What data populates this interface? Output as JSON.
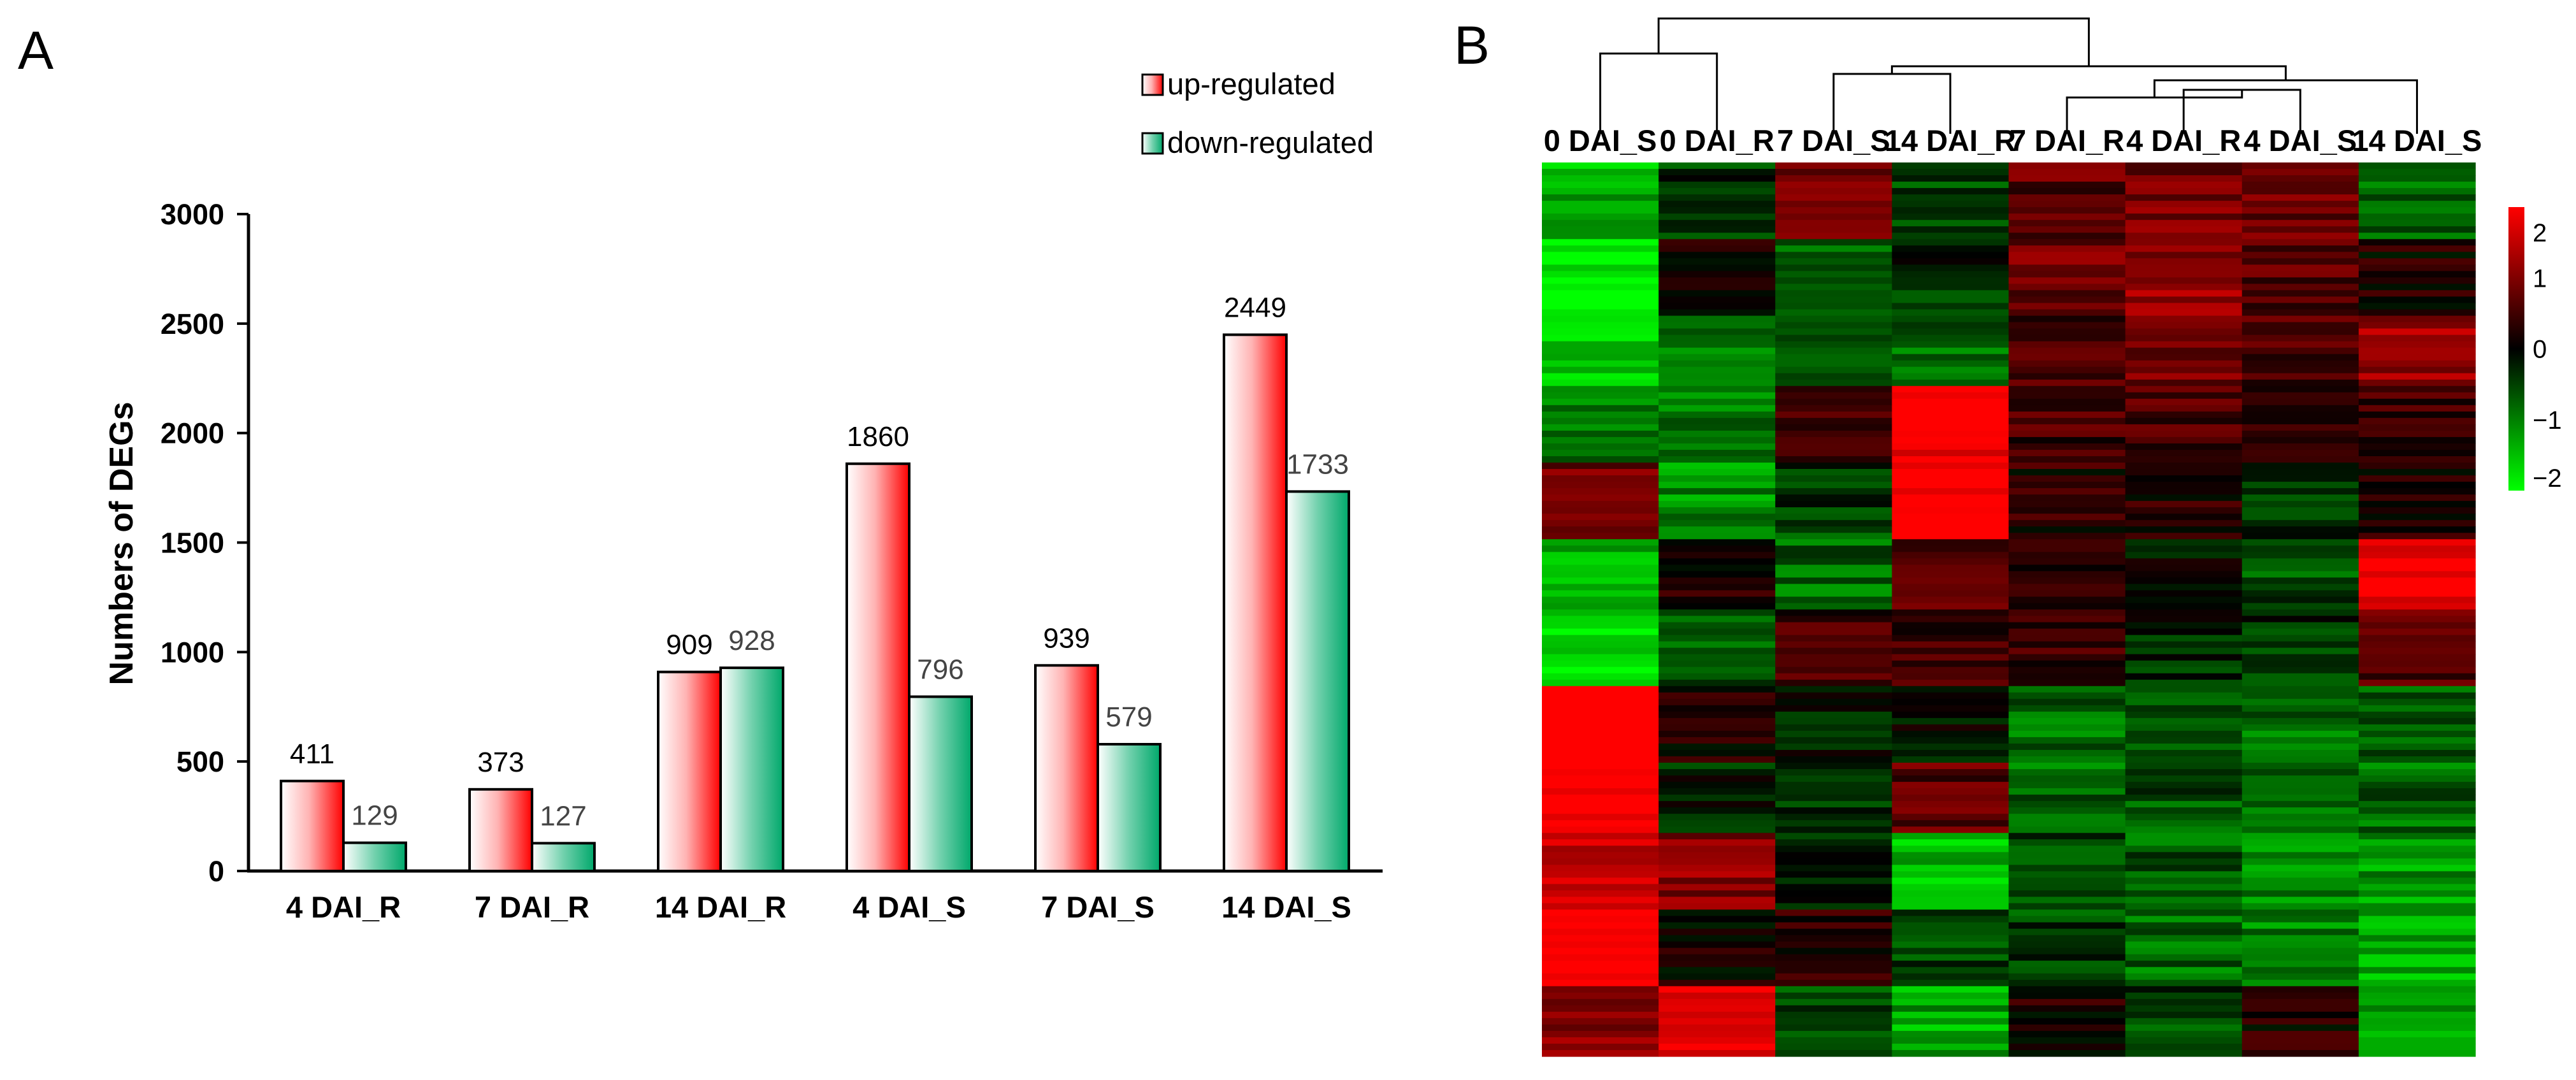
{
  "panel_a": {
    "label": "A"
  },
  "panel_b": {
    "label": "B"
  },
  "chart_data": [
    {
      "type": "bar",
      "title": "",
      "xlabel": "",
      "ylabel": "Numbers of DEGs",
      "ylim": [
        0,
        3000
      ],
      "yticks": [
        0,
        500,
        1000,
        1500,
        2000,
        2500,
        3000
      ],
      "categories": [
        "4 DAI_R",
        "7 DAI_R",
        "14 DAI_R",
        "4 DAI_S",
        "7 DAI_S",
        "14 DAI_S"
      ],
      "legend_position": "top-right",
      "series": [
        {
          "name": "up-regulated",
          "color": "#ff0000",
          "values": [
            411,
            373,
            909,
            1860,
            939,
            2449
          ]
        },
        {
          "name": "down-regulated",
          "color": "#00a86b",
          "values": [
            129,
            127,
            928,
            796,
            579,
            1733
          ]
        }
      ]
    },
    {
      "type": "heatmap",
      "columns": [
        "0 DAI_S",
        "0 DAI_R",
        "7 DAI_S",
        "14 DAI_R",
        "7 DAI_R",
        "4 DAI_R",
        "4 DAI_S",
        "14 DAI_S"
      ],
      "color_scale": {
        "min": -2,
        "max": 2,
        "ticks": [
          2,
          1,
          0,
          -1,
          -2
        ],
        "low": "#00ff00",
        "mid": "#000000",
        "high": "#ff0000"
      },
      "dendrogram": "columns",
      "row_blocks": [
        [
          -1.4,
          -0.4,
          1.0,
          -0.6,
          0.7,
          0.9,
          0.8,
          -0.7
        ],
        [
          -1.9,
          0.2,
          -0.7,
          -0.3,
          0.8,
          1.2,
          0.6,
          0.2
        ],
        [
          -1.6,
          -0.8,
          -0.9,
          -0.8,
          0.5,
          0.9,
          0.5,
          1.2
        ],
        [
          -1.0,
          -0.9,
          0.5,
          2.0,
          0.5,
          0.6,
          0.2,
          0.5
        ],
        [
          0.8,
          -1.1,
          -0.5,
          2.2,
          0.3,
          0.3,
          -0.5,
          0.3
        ],
        [
          -1.5,
          0.3,
          -0.8,
          0.6,
          0.2,
          -0.2,
          -0.6,
          2.0
        ],
        [
          -1.8,
          -0.6,
          0.5,
          0.4,
          0.4,
          -0.3,
          -0.4,
          0.6
        ],
        [
          2.4,
          0.1,
          -0.2,
          -0.2,
          -0.8,
          -0.6,
          -0.8,
          -0.6
        ],
        [
          2.2,
          -0.3,
          -0.5,
          0.7,
          -0.8,
          -0.6,
          -0.8,
          -0.8
        ],
        [
          1.5,
          1.1,
          -0.4,
          -1.5,
          -0.6,
          -0.7,
          -1.0,
          -1.2
        ],
        [
          2.3,
          0.2,
          0.3,
          -0.5,
          -0.5,
          -0.8,
          -1.0,
          -1.3
        ],
        [
          1.0,
          2.0,
          -0.5,
          -1.3,
          0.2,
          -0.5,
          0.2,
          -1.1
        ]
      ]
    }
  ]
}
